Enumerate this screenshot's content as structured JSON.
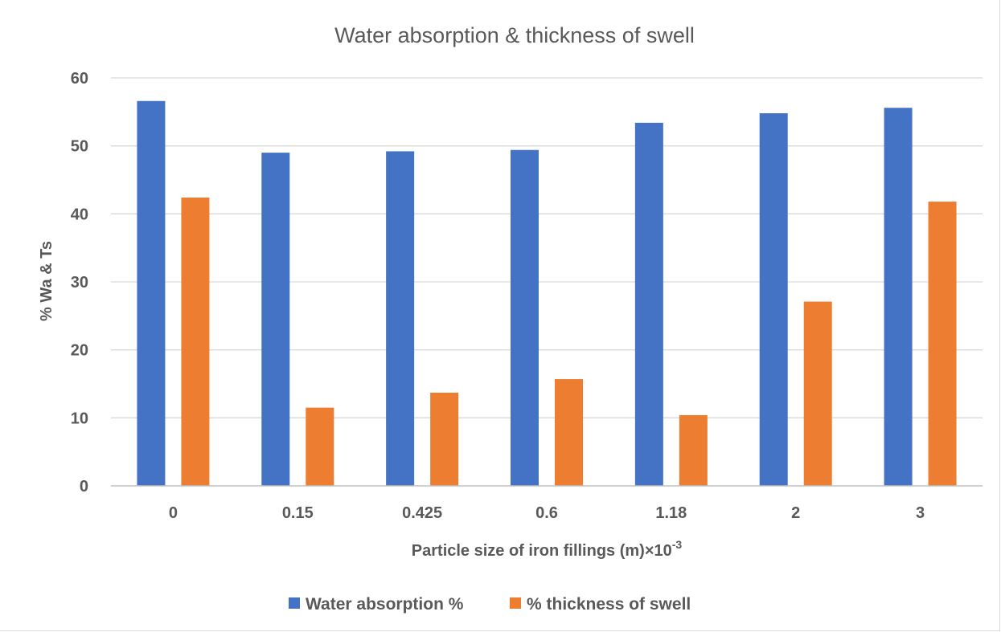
{
  "chart_data": {
    "type": "bar",
    "title": "Water absorption & thickness of swell",
    "xlabel": "Particle size of iron fillings (m)×10",
    "xlabel_superscript": "-3",
    "ylabel": "% Wa & Ts",
    "categories": [
      "0",
      "0.15",
      "0.425",
      "0.6",
      "1.18",
      "2",
      "3"
    ],
    "series": [
      {
        "name": "Water absorption %",
        "color": "#4472C4",
        "values": [
          56.6,
          49.0,
          49.2,
          49.4,
          53.4,
          54.8,
          55.6
        ]
      },
      {
        "name": "% thickness of swell",
        "color": "#ED7D31",
        "values": [
          42.4,
          11.5,
          13.7,
          15.7,
          10.4,
          27.1,
          41.8
        ]
      }
    ],
    "ylim": [
      0,
      60
    ],
    "yticks": [
      "0",
      "10",
      "20",
      "30",
      "40",
      "50",
      "60"
    ],
    "grid": true,
    "legend": "bottom"
  }
}
